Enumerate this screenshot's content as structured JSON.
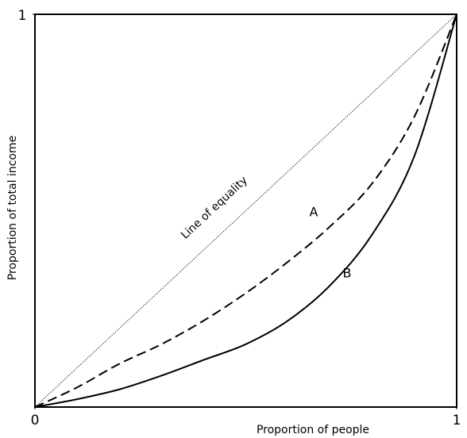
{
  "chart_data": {
    "type": "line",
    "x_label": "Proportion of people",
    "y_label": "Proportion of total income",
    "x": [
      0,
      0.1,
      0.2,
      0.3,
      0.4,
      0.5,
      0.6,
      0.7,
      0.8,
      0.9,
      1
    ],
    "xlim": [
      0,
      1
    ],
    "ylim": [
      0,
      1
    ],
    "xticks": [
      0,
      1
    ],
    "yticks": [
      1
    ],
    "series": [
      {
        "name": "Line of equality",
        "color": "#000000",
        "style": "dotted",
        "values": [
          0,
          0.1,
          0.2,
          0.3,
          0.4,
          0.5,
          0.6,
          0.7,
          0.8,
          0.9,
          1
        ]
      },
      {
        "name": "A",
        "color": "#000000",
        "style": "dashed",
        "values": [
          0,
          0.05,
          0.11,
          0.16,
          0.22,
          0.29,
          0.37,
          0.46,
          0.57,
          0.74,
          1
        ]
      },
      {
        "name": "B",
        "color": "#000000",
        "style": "solid",
        "values": [
          0,
          0.02,
          0.045,
          0.08,
          0.12,
          0.16,
          0.22,
          0.31,
          0.44,
          0.64,
          1
        ]
      }
    ]
  }
}
